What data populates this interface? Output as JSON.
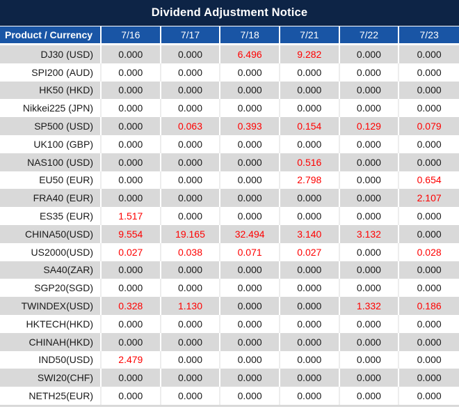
{
  "title": "Dividend Adjustment Notice",
  "table": {
    "header": [
      "Product / Currency",
      "7/16",
      "7/17",
      "7/18",
      "7/21",
      "7/22",
      "7/23"
    ],
    "rows": [
      {
        "product": "DJ30 (USD)",
        "values": [
          "0.000",
          "0.000",
          "6.496",
          "9.282",
          "0.000",
          "0.000"
        ]
      },
      {
        "product": "SPI200 (AUD)",
        "values": [
          "0.000",
          "0.000",
          "0.000",
          "0.000",
          "0.000",
          "0.000"
        ]
      },
      {
        "product": "HK50 (HKD)",
        "values": [
          "0.000",
          "0.000",
          "0.000",
          "0.000",
          "0.000",
          "0.000"
        ]
      },
      {
        "product": "Nikkei225 (JPN)",
        "values": [
          "0.000",
          "0.000",
          "0.000",
          "0.000",
          "0.000",
          "0.000"
        ]
      },
      {
        "product": "SP500 (USD)",
        "values": [
          "0.000",
          "0.063",
          "0.393",
          "0.154",
          "0.129",
          "0.079"
        ]
      },
      {
        "product": "UK100 (GBP)",
        "values": [
          "0.000",
          "0.000",
          "0.000",
          "0.000",
          "0.000",
          "0.000"
        ]
      },
      {
        "product": "NAS100 (USD)",
        "values": [
          "0.000",
          "0.000",
          "0.000",
          "0.516",
          "0.000",
          "0.000"
        ]
      },
      {
        "product": "EU50 (EUR)",
        "values": [
          "0.000",
          "0.000",
          "0.000",
          "2.798",
          "0.000",
          "0.654"
        ]
      },
      {
        "product": "FRA40 (EUR)",
        "values": [
          "0.000",
          "0.000",
          "0.000",
          "0.000",
          "0.000",
          "2.107"
        ]
      },
      {
        "product": "ES35 (EUR)",
        "values": [
          "1.517",
          "0.000",
          "0.000",
          "0.000",
          "0.000",
          "0.000"
        ]
      },
      {
        "product": "CHINA50(USD)",
        "values": [
          "9.554",
          "19.165",
          "32.494",
          "3.140",
          "3.132",
          "0.000"
        ]
      },
      {
        "product": "US2000(USD)",
        "values": [
          "0.027",
          "0.038",
          "0.071",
          "0.027",
          "0.000",
          "0.028"
        ]
      },
      {
        "product": "SA40(ZAR)",
        "values": [
          "0.000",
          "0.000",
          "0.000",
          "0.000",
          "0.000",
          "0.000"
        ]
      },
      {
        "product": "SGP20(SGD)",
        "values": [
          "0.000",
          "0.000",
          "0.000",
          "0.000",
          "0.000",
          "0.000"
        ]
      },
      {
        "product": "TWINDEX(USD)",
        "values": [
          "0.328",
          "1.130",
          "0.000",
          "0.000",
          "1.332",
          "0.186"
        ]
      },
      {
        "product": "HKTECH(HKD)",
        "values": [
          "0.000",
          "0.000",
          "0.000",
          "0.000",
          "0.000",
          "0.000"
        ]
      },
      {
        "product": "CHINAH(HKD)",
        "values": [
          "0.000",
          "0.000",
          "0.000",
          "0.000",
          "0.000",
          "0.000"
        ]
      },
      {
        "product": "IND50(USD)",
        "values": [
          "2.479",
          "0.000",
          "0.000",
          "0.000",
          "0.000",
          "0.000"
        ]
      },
      {
        "product": "SWI20(CHF)",
        "values": [
          "0.000",
          "0.000",
          "0.000",
          "0.000",
          "0.000",
          "0.000"
        ]
      },
      {
        "product": "NETH25(EUR)",
        "values": [
          "0.000",
          "0.000",
          "0.000",
          "0.000",
          "0.000",
          "0.000"
        ]
      }
    ],
    "zero_value": "0.000"
  },
  "colors": {
    "title_bar_bg": "#0d2446",
    "header_bg": "#1955a5",
    "row_alt_bg": "#d9d9d9",
    "row_bg": "#ffffff",
    "nonzero_value": "#fe0000",
    "text": "#191919",
    "header_text": "#ffffff"
  }
}
